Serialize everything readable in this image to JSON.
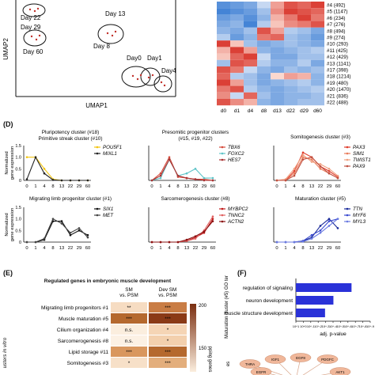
{
  "umap": {
    "xlabel": "UMAP1",
    "ylabel": "UMAP2",
    "day_labels": [
      "Day 22",
      "Day 29",
      "Day 60",
      "Day 13",
      "Day 8",
      "Day0",
      "Day1",
      "Day4"
    ]
  },
  "heatmap": {
    "columns": [
      "d0",
      "d1",
      "d4",
      "d8",
      "d13",
      "d22",
      "d29",
      "d60"
    ],
    "row_labels": [
      "#4 (492)",
      "#5 (1147)",
      "#6 (234)",
      "#7 (276)",
      "#8 (494)",
      "#9 (274)",
      "#10 (293)",
      "#11 (425)",
      "#12 (429)",
      "#13 (1141)",
      "#17 (398)",
      "#18 (1214)",
      "#19 (480)",
      "#20 (1470)",
      "#21 (836)",
      "#22 (488)"
    ],
    "values": [
      [
        -0.8,
        -0.7,
        -0.6,
        -0.2,
        0.4,
        0.8,
        0.7,
        0.9
      ],
      [
        -0.9,
        -0.8,
        -0.7,
        -0.4,
        0.5,
        0.9,
        0.8,
        0.7
      ],
      [
        -0.7,
        -0.6,
        -0.8,
        -0.5,
        0.3,
        0.6,
        0.9,
        0.6
      ],
      [
        -0.6,
        -0.5,
        -0.9,
        -0.3,
        0.2,
        0.5,
        0.6,
        0.8
      ],
      [
        -0.5,
        -0.6,
        -0.4,
        0.8,
        0.4,
        -0.3,
        -0.4,
        -0.6
      ],
      [
        -0.3,
        -0.7,
        -0.5,
        0.6,
        0.7,
        -0.4,
        -0.5,
        -0.7
      ],
      [
        0.9,
        0.2,
        -0.4,
        -0.6,
        -0.5,
        -0.4,
        -0.5,
        -0.6
      ],
      [
        0.3,
        0.9,
        0.4,
        -0.5,
        -0.6,
        -0.5,
        -0.4,
        -0.3
      ],
      [
        0.2,
        0.7,
        0.9,
        -0.2,
        -0.6,
        -0.6,
        -0.4,
        -0.4
      ],
      [
        -0.4,
        0.8,
        0.7,
        -0.3,
        -0.5,
        -0.5,
        -0.3,
        -0.6
      ],
      [
        0.8,
        0.6,
        -0.2,
        -0.5,
        -0.6,
        -0.4,
        -0.5,
        -0.4
      ],
      [
        0.7,
        -0.3,
        -0.4,
        -0.6,
        0.1,
        0.4,
        0.3,
        -0.5
      ],
      [
        0.9,
        0.4,
        -0.4,
        -0.6,
        -0.5,
        -0.4,
        -0.3,
        -0.5
      ],
      [
        0.6,
        0.8,
        -0.3,
        -0.5,
        -0.6,
        -0.5,
        -0.4,
        -0.3
      ],
      [
        0.5,
        -0.2,
        0.7,
        -0.4,
        -0.6,
        -0.5,
        -0.5,
        -0.4
      ],
      [
        0.8,
        0.5,
        0.3,
        -0.5,
        -0.6,
        -0.5,
        -0.4,
        -0.4
      ]
    ]
  },
  "panel_d": {
    "letter": "(D)",
    "ylabel": "Normalized gene expression",
    "ylabel_line1": "Normalized",
    "ylabel_line2": "gene expression",
    "x_ticks": [
      "0",
      "1",
      "4",
      "8",
      "13",
      "22",
      "29",
      "60"
    ],
    "y_ticks": [
      "0",
      "0.5",
      "1.0",
      "1.5"
    ],
    "titles": {
      "c1": "Pluripotency cluster (#18)",
      "c1b": "Primitive streak cluster (#10)",
      "c2": "Presomitic progenitor clusters",
      "c2b": "(#15, #19, #22)",
      "c3": "Somitogenesis cluster (#3)",
      "c4": "Migrating limb progenitor cluster (#1)",
      "c5": "Sarcomerogenesis cluster (#8)",
      "c6": "Maturation cluster (#5)"
    }
  },
  "chart_data": [
    {
      "type": "line",
      "title": "Pluripotency cluster (#18) / Primitive streak cluster (#10)",
      "x": [
        "0",
        "1",
        "4",
        "8",
        "13",
        "22",
        "29",
        "60"
      ],
      "ylim": [
        0,
        1.5
      ],
      "series": [
        {
          "name": "POU5F1",
          "color": "#f2c40f",
          "values": [
            1.0,
            1.0,
            0.5,
            0.05,
            0,
            0,
            0,
            0
          ]
        },
        {
          "name": "MIXL1",
          "color": "#222222",
          "values": [
            0.05,
            1.0,
            0.3,
            0.02,
            0,
            0,
            0,
            0
          ]
        }
      ]
    },
    {
      "type": "line",
      "title": "Presomitic progenitor clusters (#15, #19, #22)",
      "x": [
        "0",
        "1",
        "4",
        "8",
        "13",
        "22",
        "29",
        "60"
      ],
      "ylim": [
        0,
        1.5
      ],
      "series": [
        {
          "name": "TBX6",
          "color": "#d64a3b",
          "values": [
            0,
            0.3,
            1.0,
            0.15,
            0.1,
            0.05,
            0.05,
            0
          ]
        },
        {
          "name": "FOXC2",
          "color": "#5fc4c8",
          "values": [
            0,
            0.1,
            0.9,
            0.2,
            0.3,
            0.5,
            0.1,
            0.1
          ]
        },
        {
          "name": "HES7",
          "color": "#a83232",
          "values": [
            0,
            0.2,
            0.9,
            0.2,
            0.1,
            0.05,
            0,
            0
          ]
        }
      ]
    },
    {
      "type": "line",
      "title": "Somitogenesis cluster (#3)",
      "x": [
        "0",
        "1",
        "4",
        "8",
        "13",
        "22",
        "29",
        "60"
      ],
      "ylim": [
        0,
        1.5
      ],
      "series": [
        {
          "name": "PAX3",
          "color": "#e03b2a",
          "values": [
            0,
            0,
            0.4,
            1.2,
            1.0,
            0.6,
            0.4,
            0.15
          ]
        },
        {
          "name": "SIM1",
          "color": "#e87a5a",
          "values": [
            0,
            0,
            0.3,
            1.0,
            0.9,
            0.5,
            0.3,
            0.1
          ]
        },
        {
          "name": "TWIST1",
          "color": "#f0a080",
          "values": [
            0,
            0.05,
            0.5,
            1.1,
            0.8,
            0.7,
            0.5,
            0.2
          ]
        },
        {
          "name": "PAX9",
          "color": "#c05040",
          "values": [
            0,
            0,
            0.2,
            0.9,
            1.0,
            0.6,
            0.3,
            0.1
          ]
        }
      ]
    },
    {
      "type": "line",
      "title": "Migrating limb progenitor cluster (#1)",
      "x": [
        "0",
        "1",
        "4",
        "8",
        "13",
        "22",
        "29",
        "60"
      ],
      "ylim": [
        0,
        1.5
      ],
      "series": [
        {
          "name": "SIX1",
          "color": "#111111",
          "values": [
            0,
            0,
            0.1,
            0.9,
            0.9,
            0.3,
            0.5,
            0.3
          ]
        },
        {
          "name": "MET",
          "color": "#444444",
          "values": [
            0,
            0,
            0.15,
            1.0,
            0.8,
            0.4,
            0.6,
            0.2
          ]
        }
      ]
    },
    {
      "type": "line",
      "title": "Sarcomerogenesis cluster (#8)",
      "x": [
        "0",
        "1",
        "4",
        "8",
        "13",
        "22",
        "29",
        "60"
      ],
      "ylim": [
        0,
        1.5
      ],
      "series": [
        {
          "name": "MYBPC2",
          "color": "#c01a1a",
          "values": [
            0,
            0,
            0,
            0,
            0.05,
            0.2,
            0.4,
            1.0
          ]
        },
        {
          "name": "TNNC2",
          "color": "#e06060",
          "values": [
            0,
            0,
            0,
            0,
            0.05,
            0.15,
            0.5,
            1.1
          ]
        },
        {
          "name": "ACTN2",
          "color": "#8a1010",
          "values": [
            0,
            0,
            0,
            0,
            0.1,
            0.25,
            0.45,
            0.9
          ]
        }
      ]
    },
    {
      "type": "line",
      "title": "Maturation cluster (#5)",
      "x": [
        "0",
        "1",
        "4",
        "8",
        "13",
        "22",
        "29",
        "60"
      ],
      "ylim": [
        0,
        1.5
      ],
      "series": [
        {
          "name": "TTN",
          "color": "#1a2a9a",
          "values": [
            0,
            0,
            0,
            0.05,
            0.2,
            0.7,
            1.0,
            0.6
          ]
        },
        {
          "name": "MYF6",
          "color": "#3a4ad0",
          "values": [
            0,
            0,
            0,
            0.05,
            0.3,
            0.5,
            0.9,
            1.0
          ]
        },
        {
          "name": "MYL3",
          "color": "#6a7ae0",
          "values": [
            0,
            0,
            0,
            0.02,
            0.15,
            0.4,
            0.7,
            1.0
          ]
        }
      ]
    },
    {
      "type": "bar",
      "title": "",
      "categories": [
        "regulation of signaling",
        "neuron development",
        "muscle structure development"
      ],
      "values": [
        3.3e-07,
        9e-05,
        0.0012
      ],
      "xlabel": "adj. p-value",
      "ylabel": "Maturation cluster (#5) GO terms",
      "x_scale": "log",
      "x_ticks": [
        "10^1",
        "10^0",
        "10^-1",
        "10^-2",
        "10^-3",
        "10^-4",
        "10^-5",
        "10^-6",
        "10^-7",
        "10^-8",
        "10^-9"
      ]
    }
  ],
  "panel_e": {
    "letter": "(E)",
    "title": "Regulated genes in embryonic muscle development",
    "col1_line1": "SM",
    "col1_line2": "vs. PSM",
    "col2_line1": "Dev SM",
    "col2_line2": "vs. PSM",
    "side_label": "usters in vitro",
    "legend_right": "pping genes",
    "legend_ticks": [
      "200",
      "150"
    ],
    "rows": [
      {
        "label": "Migrating limb progenitors #1",
        "a": "**",
        "b": "***"
      },
      {
        "label": "Muscle maturation #5",
        "a": "***",
        "b": "***"
      },
      {
        "label": "Cilium organization #4",
        "a": "n.s.",
        "b": "*"
      },
      {
        "label": "Sarcomerogenesis #8",
        "a": "n.s.",
        "b": "*"
      },
      {
        "label": "Lipid storage #11",
        "a": "***",
        "b": "***"
      },
      {
        "label": "Somitogenesis #3",
        "a": "*",
        "b": "***"
      }
    ]
  },
  "panel_f": {
    "letter": "(F)",
    "xlabel": "adj. p-value",
    "ylabel": "Maturation cluster (#5) GO terms",
    "bars": [
      "regulation of signaling",
      "neuron development",
      "muscle structure development"
    ],
    "nodes": [
      "THRA",
      "IGF1",
      "EGF8",
      "PDGFC",
      "EGFR",
      "AKT1"
    ],
    "bottom_fragment": "es"
  }
}
